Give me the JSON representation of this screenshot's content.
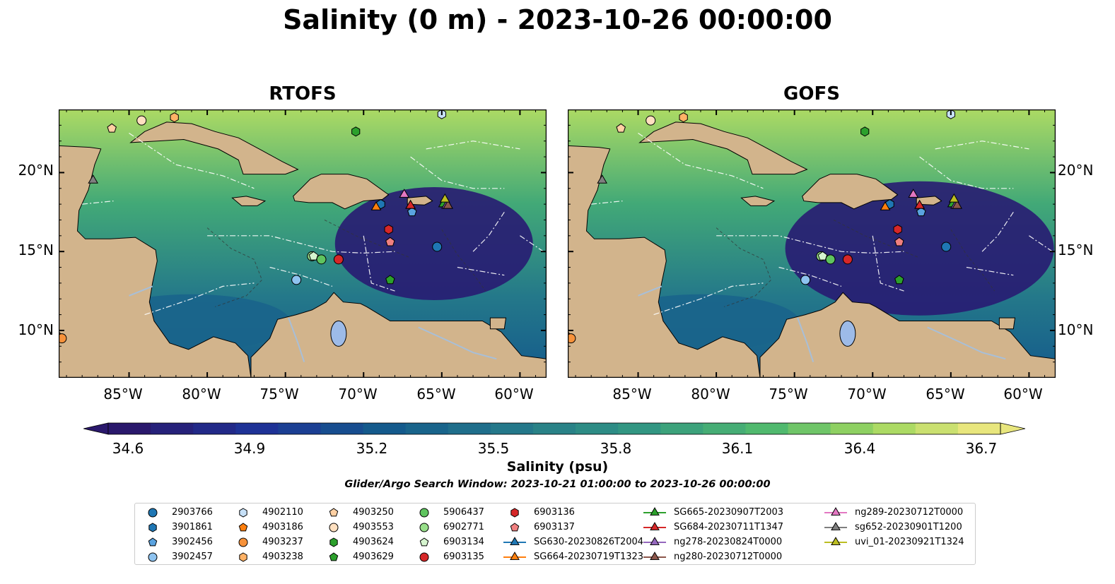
{
  "title": "Salinity (0 m) - 2023-10-26 00:00:00",
  "panels": [
    {
      "id": "rtofs",
      "title": "RTOFS"
    },
    {
      "id": "gofs",
      "title": "GOFS"
    }
  ],
  "axes": {
    "lon_ticks": [
      "85°W",
      "80°W",
      "75°W",
      "70°W",
      "65°W",
      "60°W"
    ],
    "lat_ticks": [
      "20°N",
      "15°N",
      "10°N"
    ],
    "lon_range": [
      -89.5,
      -58.3
    ],
    "lat_range": [
      7.0,
      24.0
    ]
  },
  "colorbar": {
    "label": "Salinity (psu)",
    "ticks": [
      "34.6",
      "34.9",
      "35.2",
      "35.5",
      "35.8",
      "36.1",
      "36.4",
      "36.7"
    ],
    "range": [
      34.6,
      36.7
    ],
    "colormap": "haline",
    "extend": "both"
  },
  "search_window": "Glider/Argo Search Window: 2023-10-21 01:00:00 to 2023-10-26 00:00:00",
  "colors": {
    "land": "#d2b48c",
    "lake": "#9dbbe8",
    "ocean_low": "#2a1a6e",
    "ocean_high": "#e8e37a"
  },
  "platforms": [
    {
      "name": "2903766",
      "marker": "circle",
      "color": "#1f77b4",
      "lon": -65.3,
      "lat": 15.3
    },
    {
      "name": "3901861",
      "marker": "hexagon",
      "color": "#1f77b4",
      "lon": -68.9,
      "lat": 18.0
    },
    {
      "name": "3902456",
      "marker": "pentagon",
      "color": "#5aa3e0",
      "lon": -66.9,
      "lat": 17.5
    },
    {
      "name": "3902457",
      "marker": "circle",
      "color": "#8ec3f0",
      "lon": -74.3,
      "lat": 13.2
    },
    {
      "name": "4902110",
      "marker": "hexagon",
      "color": "#c6e0f7",
      "lon": -65.0,
      "lat": 23.7
    },
    {
      "name": "4903186",
      "marker": "pentagon",
      "color": "#ff7f0e",
      "lon": -89.5,
      "lat": 9.6
    },
    {
      "name": "4903237",
      "marker": "circle",
      "color": "#f7923a",
      "lon": -89.3,
      "lat": 9.5
    },
    {
      "name": "4903238",
      "marker": "hexagon",
      "color": "#ffb266",
      "lon": -82.1,
      "lat": 23.5
    },
    {
      "name": "4903250",
      "marker": "pentagon",
      "color": "#ffd0a3",
      "lon": -86.1,
      "lat": 22.8
    },
    {
      "name": "4903553",
      "marker": "circle",
      "color": "#ffe0c0",
      "lon": -84.2,
      "lat": 23.3
    },
    {
      "name": "4903624",
      "marker": "hexagon",
      "color": "#2ca02c",
      "lon": -70.5,
      "lat": 22.6
    },
    {
      "name": "4903629",
      "marker": "pentagon",
      "color": "#2ca02c",
      "lon": -68.3,
      "lat": 13.2
    },
    {
      "name": "5906437",
      "marker": "circle",
      "color": "#5fc45f",
      "lon": -72.7,
      "lat": 14.5
    },
    {
      "name": "6902771",
      "marker": "circle",
      "color": "#98df8a",
      "lon": -73.3,
      "lat": 14.7
    },
    {
      "name": "6903134",
      "marker": "pentagon",
      "color": "#d6f5cf",
      "lon": -73.2,
      "lat": 14.7
    },
    {
      "name": "6903135",
      "marker": "circle",
      "color": "#d62728",
      "lon": -71.6,
      "lat": 14.5
    },
    {
      "name": "6903136",
      "marker": "hexagon",
      "color": "#d62728",
      "lon": -68.4,
      "lat": 16.4
    },
    {
      "name": "6903137",
      "marker": "pentagon",
      "color": "#f08080",
      "lon": -68.3,
      "lat": 15.6
    },
    {
      "name": "SG630-20230826T2004",
      "marker": "triangle",
      "color": "#1f77b4",
      "line": true,
      "lon": -67.0,
      "lat": 17.9
    },
    {
      "name": "SG664-20230719T1323",
      "marker": "triangle",
      "color": "#ff7f0e",
      "line": true,
      "lon": -69.2,
      "lat": 17.8
    },
    {
      "name": "SG665-20230907T2003",
      "marker": "triangle",
      "color": "#2ca02c",
      "line": true,
      "lon": -64.9,
      "lat": 18.0
    },
    {
      "name": "SG684-20230711T1347",
      "marker": "triangle",
      "color": "#d62728",
      "line": true,
      "lon": -67.0,
      "lat": 17.9
    },
    {
      "name": "ng278-20230824T0000",
      "marker": "triangle",
      "color": "#9467bd",
      "line": true,
      "lon": -64.7,
      "lat": 17.9
    },
    {
      "name": "ng280-20230712T0000",
      "marker": "triangle",
      "color": "#8c564b",
      "line": true,
      "lon": -64.6,
      "lat": 17.9
    },
    {
      "name": "ng289-20230712T0000",
      "marker": "triangle",
      "color": "#e377c2",
      "line": true,
      "lon": -67.4,
      "lat": 18.6
    },
    {
      "name": "sg652-20230901T1200",
      "marker": "triangle",
      "color": "#7f7f7f",
      "line": true,
      "lon": -87.3,
      "lat": 19.5
    },
    {
      "name": "uvi_01-20230921T1324",
      "marker": "triangle",
      "color": "#bcbd22",
      "line": true,
      "lon": -64.8,
      "lat": 18.3
    }
  ]
}
